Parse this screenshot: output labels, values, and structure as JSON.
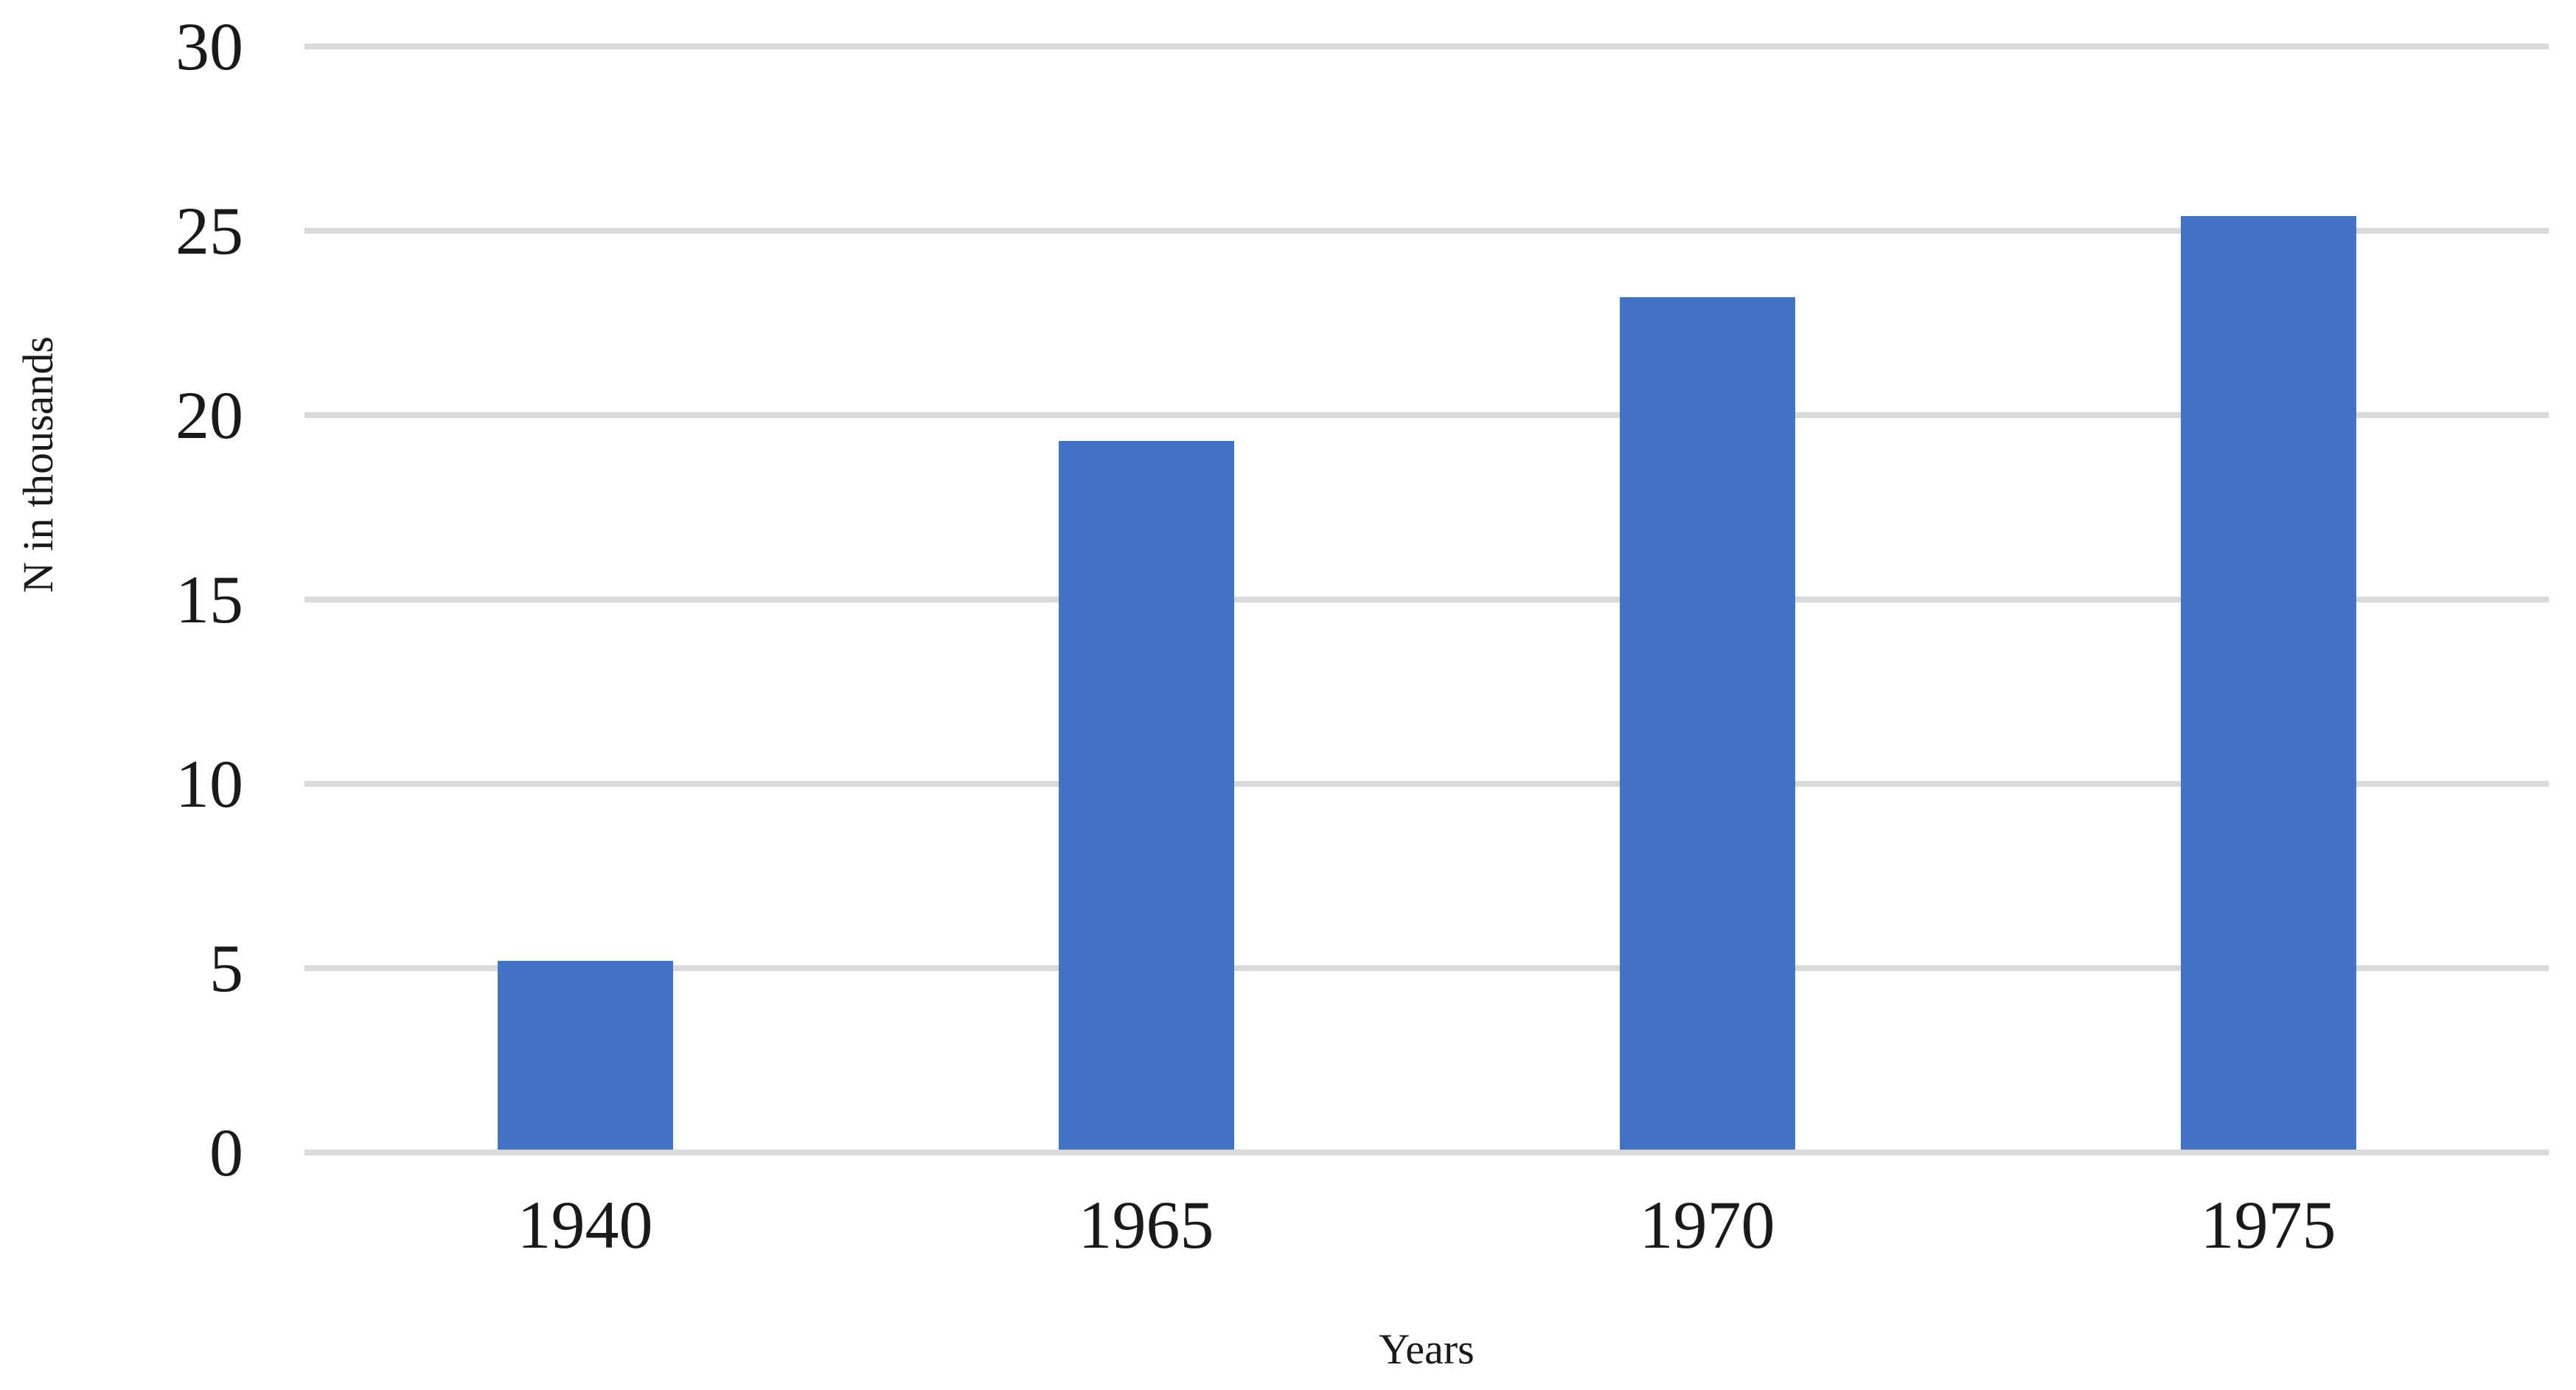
{
  "chart_data": {
    "type": "bar",
    "categories": [
      "1940",
      "1965",
      "1970",
      "1975"
    ],
    "values": [
      5.2,
      19.3,
      23.2,
      25.4
    ],
    "title": "",
    "xlabel": "Years",
    "ylabel": "N in thousands",
    "ylim": [
      0,
      30
    ],
    "yticks": [
      0,
      5,
      10,
      15,
      20,
      25,
      30
    ],
    "grid": "horizontal",
    "legend_position": "none",
    "bar_color": "#4472C4",
    "gridline_color": "#D9D9D9",
    "axis_line_color": "#D9D9D9",
    "text_color": "#1A1A1A"
  }
}
